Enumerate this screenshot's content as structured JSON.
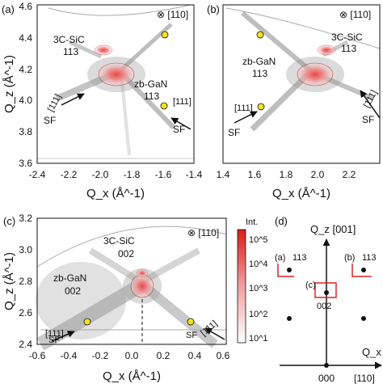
{
  "panels": {
    "a": {
      "label": "(a)",
      "xlabel": "Q_x (Å^-1)",
      "ylabel": "Q_z (Å^-1)",
      "xlim": [
        -2.4,
        -1.4
      ],
      "ylim": [
        3.6,
        4.6
      ],
      "xticks": [
        "-2.4",
        "-2.2",
        "-2.0",
        "-1.8",
        "-1.6",
        "-1.4"
      ],
      "yticks": [
        "3.6",
        "3.8",
        "4.0",
        "4.2",
        "4.4",
        "4.6"
      ],
      "beam": "⊗ [110]",
      "labels": {
        "sic_1": "3C-SiC",
        "sic_2": "113",
        "gan_1": "zb-GaN",
        "gan_2": "113",
        "sf1": "SF",
        "sf2": "SF",
        "dir1": "[111]",
        "dir2": "[111]"
      }
    },
    "b": {
      "label": "(b)",
      "xlabel": "Q_x (Å^-1)",
      "xlim": [
        1.4,
        2.4
      ],
      "ylim": [
        3.6,
        4.6
      ],
      "xticks": [
        "1.4",
        "1.6",
        "1.8",
        "2.0",
        "2.2"
      ],
      "beam": "⊗ [110]",
      "labels": {
        "sic_1": "3C-SiC",
        "sic_2": "113",
        "gan_1": "zb-GaN",
        "gan_2": "113",
        "sf1": "SF",
        "sf2": "SF",
        "dir1": "[111]",
        "dir2": "[111]"
      }
    },
    "c": {
      "label": "(c)",
      "xlabel": "Q_x (Å^-1)",
      "ylabel": "Q_z (Å^-1)",
      "xlim": [
        -0.6,
        0.6
      ],
      "ylim": [
        2.4,
        3.2
      ],
      "xticks": [
        "-0.6",
        "-0.4",
        "-0.2",
        "0.0",
        "0.2",
        "0.4",
        "0.6"
      ],
      "yticks": [
        "2.4",
        "2.6",
        "2.8",
        "3.0",
        "3.2"
      ],
      "beam": "⊗ [110]",
      "labels": {
        "sic_1": "3C-SiC",
        "sic_2": "002",
        "gan_1": "zb-GaN",
        "gan_2": "002",
        "sf1": "SF",
        "sf2": "SF",
        "dir1": "[111]",
        "dir2": "[111]"
      }
    },
    "d": {
      "label": "(d)",
      "qz": "Q_z [001]",
      "qx": "Q_x",
      "origin": "000",
      "xdir": "[110]",
      "ref_a": "(a)",
      "ref_a_hkl": "113",
      "ref_b": "(b)",
      "ref_b_hkl": "113",
      "ref_c": "(c)",
      "ref_c_hkl": "002"
    }
  },
  "colorbar": {
    "title": "Int.",
    "ticks": [
      "10^5",
      "10^4",
      "10^3",
      "10^2",
      "10^1"
    ]
  },
  "chart_data": [
    {
      "type": "heatmap",
      "title": "",
      "xlabel": "Qx (Å^-1)",
      "ylabel": "Qz (Å^-1)",
      "xlim": [
        -2.4,
        -1.4
      ],
      "ylim": [
        3.6,
        4.6
      ],
      "peaks": [
        {
          "name": "zb-GaN -1-13",
          "x": -1.95,
          "y": 4.18
        },
        {
          "name": "3C-SiC -1-13",
          "x": -2.03,
          "y": 4.33
        }
      ],
      "markers": [
        {
          "x": -1.65,
          "y": 4.47
        },
        {
          "x": -1.65,
          "y": 3.98
        }
      ]
    },
    {
      "type": "heatmap",
      "title": "",
      "xlabel": "Qx (Å^-1)",
      "ylabel": "",
      "xlim": [
        1.4,
        2.4
      ],
      "ylim": [
        3.6,
        4.6
      ],
      "peaks": [
        {
          "name": "zb-GaN 1-13",
          "x": 1.95,
          "y": 4.18
        },
        {
          "name": "3C-SiC 1-13",
          "x": 2.03,
          "y": 4.33
        }
      ],
      "markers": [
        {
          "x": 1.65,
          "y": 4.47
        },
        {
          "x": 1.65,
          "y": 3.98
        }
      ]
    },
    {
      "type": "heatmap",
      "title": "",
      "xlabel": "Qx (Å^-1)",
      "ylabel": "Qz (Å^-1)",
      "xlim": [
        -0.6,
        0.6
      ],
      "ylim": [
        2.4,
        3.2
      ],
      "peaks": [
        {
          "name": "zb-GaN 002",
          "x": 0.0,
          "y": 2.78
        },
        {
          "name": "3C-SiC 002",
          "x": 0.0,
          "y": 2.88
        }
      ],
      "markers": [
        {
          "x": -0.33,
          "y": 2.56
        },
        {
          "x": 0.33,
          "y": 2.56
        }
      ],
      "colorbar": {
        "label": "Int.",
        "scale": "log",
        "range": [
          10,
          100000
        ]
      }
    }
  ]
}
